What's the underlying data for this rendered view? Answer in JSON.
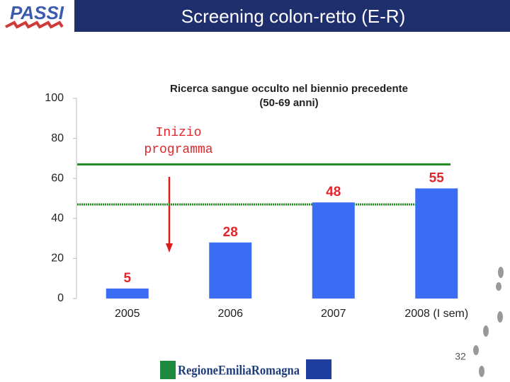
{
  "header": {
    "logo": "PASSI",
    "title": "Screening colon-retto (E-R)"
  },
  "chart_data": {
    "type": "bar",
    "title": "Ricerca sangue occulto nel biennio precedente",
    "subtitle": "(50-69 anni)",
    "categories": [
      "2005",
      "2006",
      "2007",
      "2008 (I sem)"
    ],
    "values": [
      5,
      28,
      48,
      55
    ],
    "color": "#3a6cf4",
    "label_color": "#e0262b",
    "ylim": [
      0,
      100
    ],
    "yticks": [
      0,
      20,
      40,
      60,
      80,
      100
    ],
    "grid": false,
    "annotation": "Inizio programma",
    "reference_lines": [
      {
        "value": 67,
        "style": "solid"
      },
      {
        "value": 47,
        "style": "dotted"
      }
    ],
    "reference_color": "#1d8a1d"
  },
  "footer": {
    "page_number": "32",
    "logo_text": "RegioneEmiliaRomagna"
  }
}
